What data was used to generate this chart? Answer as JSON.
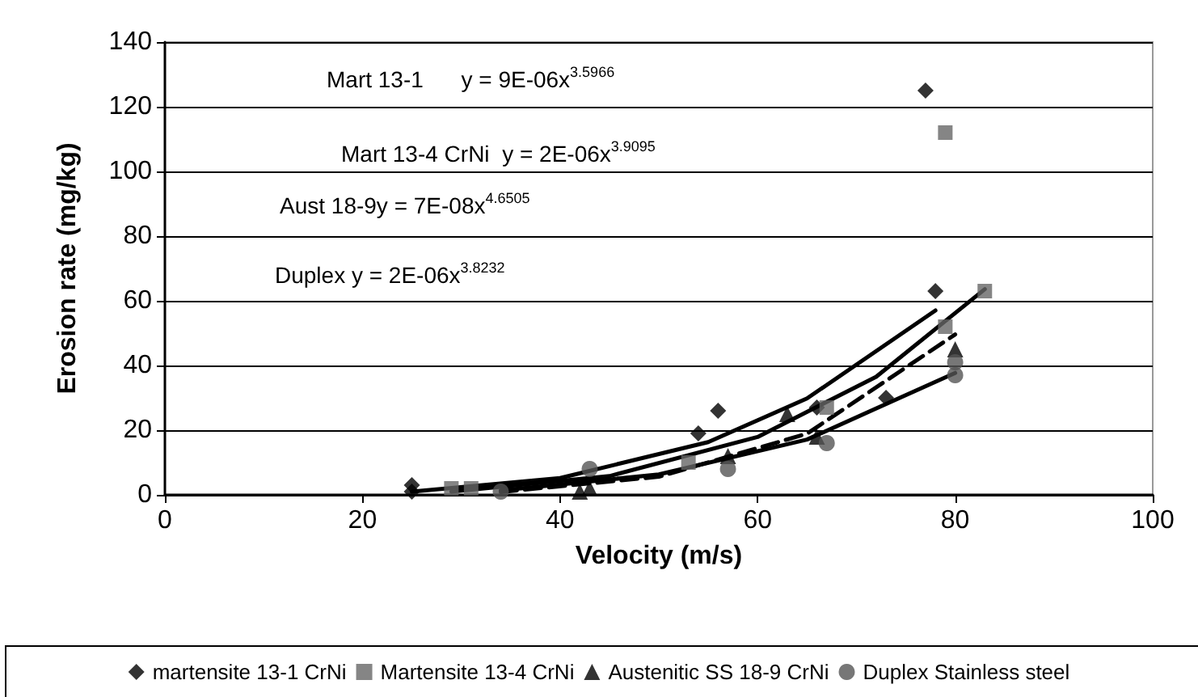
{
  "chart_data": {
    "type": "scatter",
    "xlabel": "Velocity (m/s)",
    "ylabel": "Erosion rate (mg/kg)",
    "xlim": [
      0,
      100
    ],
    "xticks": [
      0,
      20,
      40,
      60,
      80,
      100
    ],
    "ylim": [
      0,
      140
    ],
    "yticks": [
      0,
      20,
      40,
      60,
      80,
      100,
      120,
      140
    ],
    "grid": "y",
    "legend": "bottom",
    "annotations": [
      "Mart 13-1      y = 9E-06x$^{3.5966}$",
      "Mart 13-4 CrNi  y = 2E-06x$^{3.9095}$",
      "Aust 18-9y = 7E-08x$^{4.6505}$",
      "Duplex y = 2E-06x$^{3.8232}$"
    ],
    "series": [
      {
        "name": "martensite 13-1 CrNi",
        "color": "#000000",
        "marker": "diamond",
        "x": [
          25,
          25,
          54,
          56,
          66,
          73,
          78,
          77
        ],
        "values": [
          3,
          1,
          19,
          26,
          27,
          30,
          63,
          125
        ]
      },
      {
        "name": "Martensite 13-4 CrNi",
        "color": "#666666",
        "marker": "square",
        "x": [
          29,
          31,
          53,
          67,
          79,
          83,
          79
        ],
        "values": [
          2,
          2,
          10,
          27,
          52,
          63,
          112
        ]
      },
      {
        "name": "Austenitic SS 18-9 CrNi",
        "color": "#000000",
        "marker": "triangle",
        "x": [
          42,
          43,
          57,
          63,
          66,
          80
        ],
        "values": [
          1,
          2,
          12,
          25,
          18,
          45
        ]
      },
      {
        "name": "Duplex Stainless steel",
        "color": "#555555",
        "marker": "circle",
        "x": [
          34,
          43,
          57,
          67,
          80,
          80
        ],
        "values": [
          1,
          8,
          8,
          16,
          37,
          41
        ]
      },
      {
        "type": "line",
        "color": "#000000",
        "marker": "none",
        "line_style": "solid",
        "x": [
          25,
          40,
          55,
          65,
          78
        ],
        "values": [
          1,
          5.2,
          16.3,
          29.8,
          57
        ]
      },
      {
        "type": "line",
        "color": "#000000",
        "marker": "none",
        "line_style": "solid",
        "x": [
          29,
          45,
          60,
          72,
          83
        ],
        "values": [
          1,
          5.8,
          17.9,
          36.5,
          63.6
        ]
      },
      {
        "type": "line",
        "color": "#000000",
        "marker": "none",
        "line_style": "dashed",
        "x": [
          34,
          50,
          65,
          80
        ],
        "values": [
          0.9,
          5.6,
          18.9,
          49.6
        ]
      },
      {
        "type": "line",
        "color": "#000000",
        "marker": "none",
        "line_style": "solid",
        "x": [
          34,
          50,
          65,
          80
        ],
        "values": [
          1.4,
          6.3,
          17.1,
          37.7
        ]
      }
    ]
  }
}
